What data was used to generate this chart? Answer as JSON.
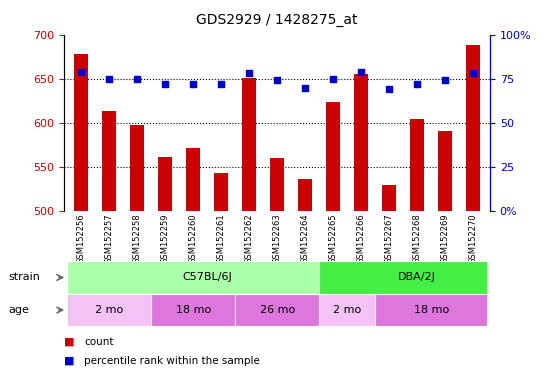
{
  "title": "GDS2929 / 1428275_at",
  "samples": [
    "GSM152256",
    "GSM152257",
    "GSM152258",
    "GSM152259",
    "GSM152260",
    "GSM152261",
    "GSM152262",
    "GSM152263",
    "GSM152264",
    "GSM152265",
    "GSM152266",
    "GSM152267",
    "GSM152268",
    "GSM152269",
    "GSM152270"
  ],
  "counts": [
    678,
    613,
    598,
    561,
    572,
    543,
    651,
    560,
    537,
    624,
    655,
    530,
    604,
    591,
    688
  ],
  "percentiles": [
    79,
    75,
    75,
    72,
    72,
    72,
    78,
    74,
    70,
    75,
    79,
    69,
    72,
    74,
    78
  ],
  "ymin": 500,
  "ymax": 700,
  "yticks_left": [
    500,
    550,
    600,
    650,
    700
  ],
  "pct_yticks": [
    0,
    25,
    50,
    75,
    100
  ],
  "bar_color": "#cc0000",
  "dot_color": "#0000cc",
  "axis_color_left": "#cc0000",
  "axis_color_right": "#0000cc",
  "strain_groups": [
    {
      "label": "C57BL/6J",
      "start": 0,
      "end": 9,
      "color": "#aaffaa"
    },
    {
      "label": "DBA/2J",
      "start": 9,
      "end": 15,
      "color": "#44ee44"
    }
  ],
  "age_groups": [
    {
      "label": "2 mo",
      "start": 0,
      "end": 3,
      "color": "#f4c2f4"
    },
    {
      "label": "18 mo",
      "start": 3,
      "end": 6,
      "color": "#dd77dd"
    },
    {
      "label": "26 mo",
      "start": 6,
      "end": 9,
      "color": "#dd77dd"
    },
    {
      "label": "2 mo",
      "start": 9,
      "end": 11,
      "color": "#f4c2f4"
    },
    {
      "label": "18 mo",
      "start": 11,
      "end": 15,
      "color": "#dd77dd"
    }
  ],
  "legend_items": [
    {
      "color": "#cc0000",
      "label": "count"
    },
    {
      "color": "#0000cc",
      "label": "percentile rank within the sample"
    }
  ],
  "strain_label": "strain",
  "age_label": "age",
  "bg_color": "#ffffff",
  "plot_bg": "#ffffff",
  "xticklabel_bg": "#cccccc",
  "grid_dotted_at": [
    550,
    600,
    650
  ]
}
